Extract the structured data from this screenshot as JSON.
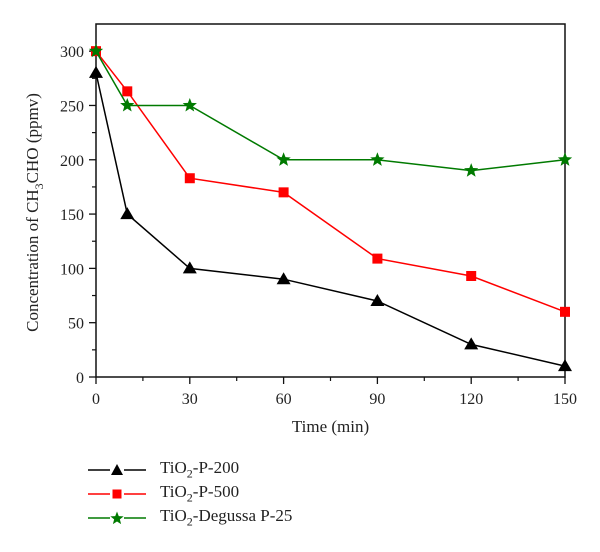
{
  "chart_data": {
    "type": "line",
    "title": "",
    "xlabel": "Time (min)",
    "ylabel_prefix": "Concentration of CH",
    "ylabel_sub": "3",
    "ylabel_suffix": "CHO (ppmv)",
    "xlim": [
      0,
      150
    ],
    "ylim": [
      0,
      325
    ],
    "xticks": [
      0,
      30,
      60,
      90,
      120,
      150
    ],
    "yticks": [
      0,
      50,
      100,
      150,
      200,
      250,
      300
    ],
    "grid": false,
    "legend_position": "bottom-left-below",
    "series": [
      {
        "name": "TiO2-P-200",
        "label_prefix": "TiO",
        "label_sub": "2",
        "label_suffix": "-P-200",
        "color": "#000000",
        "marker": "triangle",
        "x": [
          0,
          10,
          30,
          60,
          90,
          120,
          150
        ],
        "y": [
          280,
          150,
          100,
          90,
          70,
          30,
          10
        ]
      },
      {
        "name": "TiO2-P-500",
        "label_prefix": "TiO",
        "label_sub": "2",
        "label_suffix": "-P-500",
        "color": "#ff0000",
        "marker": "square",
        "x": [
          0,
          10,
          30,
          60,
          90,
          120,
          150
        ],
        "y": [
          300,
          263,
          183,
          170,
          109,
          93,
          60
        ]
      },
      {
        "name": "TiO2-Degussa P-25",
        "label_prefix": "TiO",
        "label_sub": "2",
        "label_suffix": "-Degussa P-25",
        "color": "#007a00",
        "marker": "star",
        "x": [
          0,
          10,
          30,
          60,
          90,
          120,
          150
        ],
        "y": [
          300,
          250,
          250,
          200,
          200,
          190,
          200
        ]
      }
    ]
  }
}
